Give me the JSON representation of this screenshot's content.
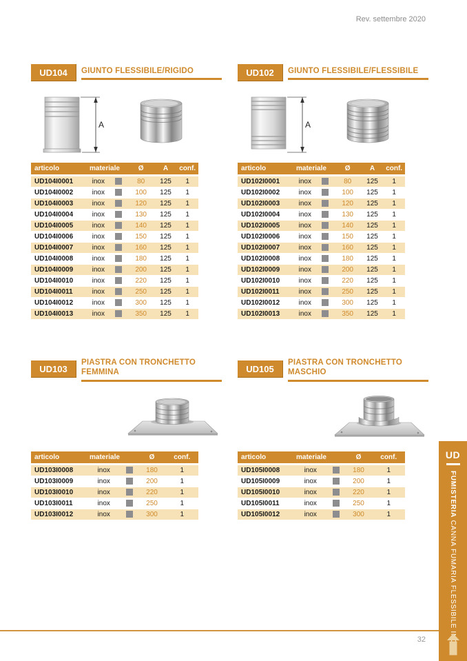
{
  "page": {
    "revision": "Rev. settembre 2020",
    "page_number": "32"
  },
  "sidebar": {
    "code": "UD",
    "category_bold": "FUMISTERIA",
    "category_rest": " CANNA FUMARIA FLESSIBILE INOX"
  },
  "colors": {
    "accent_orange": "#cf8a2d",
    "row_beige": "#f6e2b6",
    "swatch_gray": "#8d8d8f"
  },
  "products": [
    {
      "code": "UD104",
      "title": "GIUNTO FLESSIBILE/RIGIDO",
      "dimension_label": "A",
      "columns": [
        "articolo",
        "materiale",
        "Ø",
        "A",
        "conf."
      ],
      "rows": [
        [
          "UD104I0001",
          "inox",
          "80",
          "125",
          "1"
        ],
        [
          "UD104I0002",
          "inox",
          "100",
          "125",
          "1"
        ],
        [
          "UD104I0003",
          "inox",
          "120",
          "125",
          "1"
        ],
        [
          "UD104I0004",
          "inox",
          "130",
          "125",
          "1"
        ],
        [
          "UD104I0005",
          "inox",
          "140",
          "125",
          "1"
        ],
        [
          "UD104I0006",
          "inox",
          "150",
          "125",
          "1"
        ],
        [
          "UD104I0007",
          "inox",
          "160",
          "125",
          "1"
        ],
        [
          "UD104I0008",
          "inox",
          "180",
          "125",
          "1"
        ],
        [
          "UD104I0009",
          "inox",
          "200",
          "125",
          "1"
        ],
        [
          "UD104I0010",
          "inox",
          "220",
          "125",
          "1"
        ],
        [
          "UD104I0011",
          "inox",
          "250",
          "125",
          "1"
        ],
        [
          "UD104I0012",
          "inox",
          "300",
          "125",
          "1"
        ],
        [
          "UD104I0013",
          "inox",
          "350",
          "125",
          "1"
        ]
      ]
    },
    {
      "code": "UD102",
      "title": "GIUNTO FLESSIBILE/FLESSIBILE",
      "dimension_label": "A",
      "columns": [
        "articolo",
        "materiale",
        "Ø",
        "A",
        "conf."
      ],
      "rows": [
        [
          "UD102I0001",
          "inox",
          "80",
          "125",
          "1"
        ],
        [
          "UD102I0002",
          "inox",
          "100",
          "125",
          "1"
        ],
        [
          "UD102I0003",
          "inox",
          "120",
          "125",
          "1"
        ],
        [
          "UD102I0004",
          "inox",
          "130",
          "125",
          "1"
        ],
        [
          "UD102I0005",
          "inox",
          "140",
          "125",
          "1"
        ],
        [
          "UD102I0006",
          "inox",
          "150",
          "125",
          "1"
        ],
        [
          "UD102I0007",
          "inox",
          "160",
          "125",
          "1"
        ],
        [
          "UD102I0008",
          "inox",
          "180",
          "125",
          "1"
        ],
        [
          "UD102I0009",
          "inox",
          "200",
          "125",
          "1"
        ],
        [
          "UD102I0010",
          "inox",
          "220",
          "125",
          "1"
        ],
        [
          "UD102I0011",
          "inox",
          "250",
          "125",
          "1"
        ],
        [
          "UD102I0012",
          "inox",
          "300",
          "125",
          "1"
        ],
        [
          "UD102I0013",
          "inox",
          "350",
          "125",
          "1"
        ]
      ]
    },
    {
      "code": "UD103",
      "title": "PIASTRA CON TRONCHETTO FEMMINA",
      "columns": [
        "articolo",
        "materiale",
        "Ø",
        "conf."
      ],
      "rows": [
        [
          "UD103I0008",
          "inox",
          "180",
          "1"
        ],
        [
          "UD103I0009",
          "inox",
          "200",
          "1"
        ],
        [
          "UD103I0010",
          "inox",
          "220",
          "1"
        ],
        [
          "UD103I0011",
          "inox",
          "250",
          "1"
        ],
        [
          "UD103I0012",
          "inox",
          "300",
          "1"
        ]
      ]
    },
    {
      "code": "UD105",
      "title": "PIASTRA CON TRONCHETTO MASCHIO",
      "columns": [
        "articolo",
        "materiale",
        "Ø",
        "conf."
      ],
      "rows": [
        [
          "UD105I0008",
          "inox",
          "180",
          "1"
        ],
        [
          "UD105I0009",
          "inox",
          "200",
          "1"
        ],
        [
          "UD105I0010",
          "inox",
          "220",
          "1"
        ],
        [
          "UD105I0011",
          "inox",
          "250",
          "1"
        ],
        [
          "UD105I0012",
          "inox",
          "300",
          "1"
        ]
      ]
    }
  ]
}
